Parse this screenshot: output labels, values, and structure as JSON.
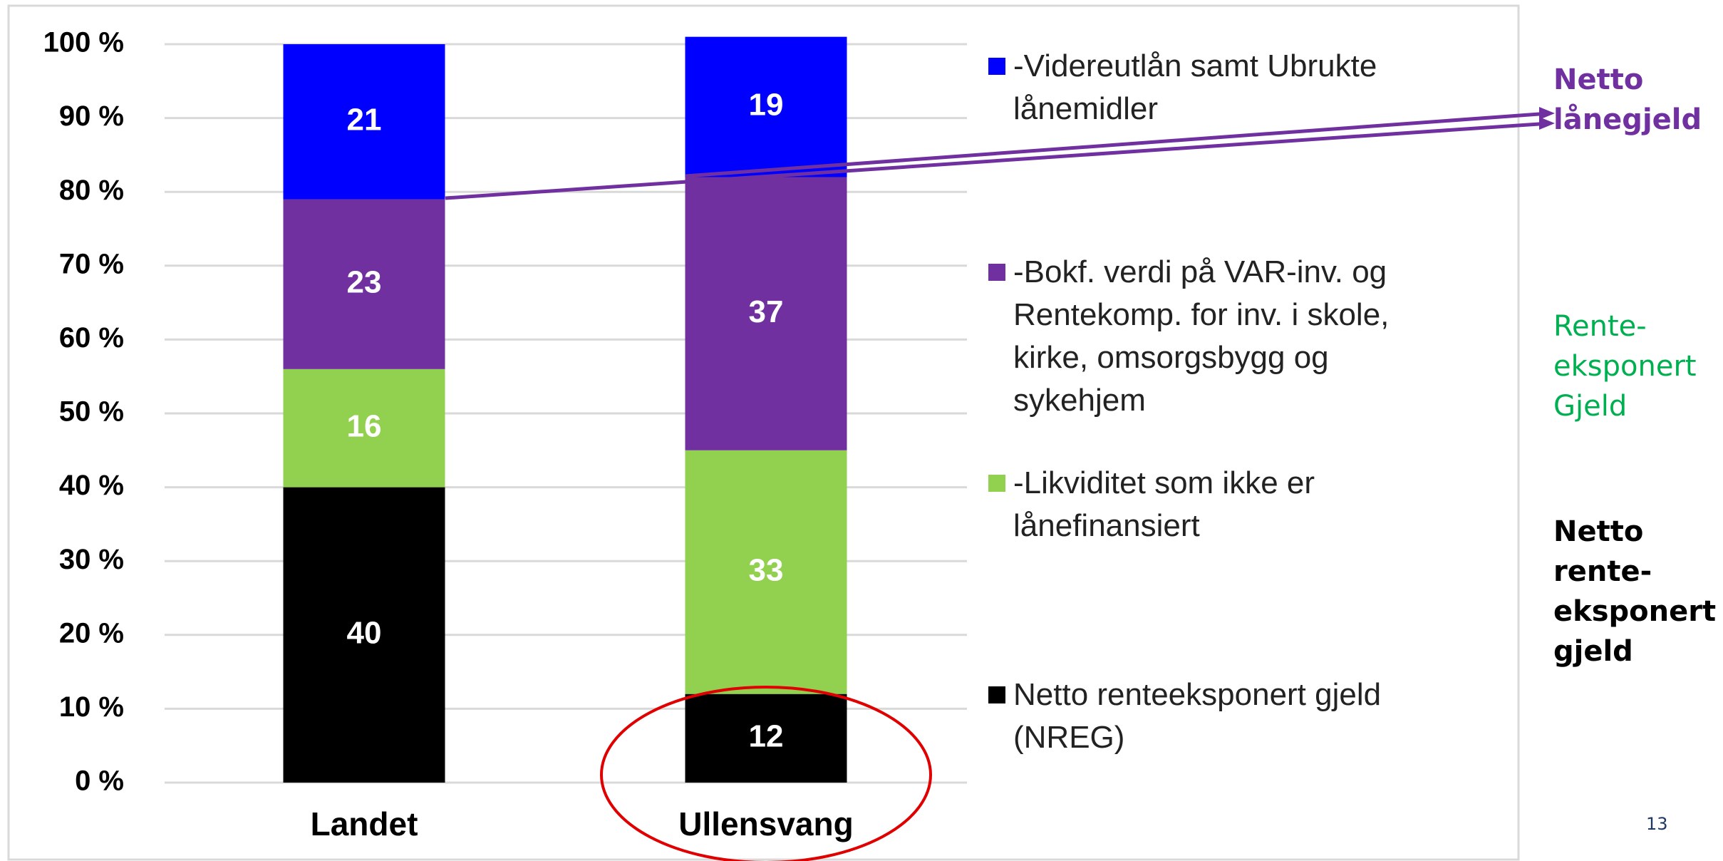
{
  "chart_data": {
    "type": "stacked_bar",
    "categories": [
      "Landet",
      "Ullensvang"
    ],
    "series": [
      {
        "name": "Netto renteeksponert gjeld (NREG)",
        "color": "#000000",
        "values": [
          40,
          12
        ]
      },
      {
        "name": "-Likviditet som ikke er lånefinansiert",
        "color": "#92d050",
        "values": [
          16,
          33
        ]
      },
      {
        "name": "-Bokf. verdi på VAR-inv. og Rentekomp. for inv. i skole, kirke, omsorgsbygg og sykehjem",
        "color": "#7030a0",
        "values": [
          23,
          37
        ]
      },
      {
        "name": "-Videreutlån samt Ubrukte lånemidler",
        "color": "#0000ff",
        "values": [
          21,
          19
        ]
      }
    ],
    "ylim": [
      0,
      100
    ],
    "yticks": [
      {
        "value": 0,
        "label": "0 %"
      },
      {
        "value": 10,
        "label": "10 %"
      },
      {
        "value": 20,
        "label": "20 %"
      },
      {
        "value": 30,
        "label": "30 %"
      },
      {
        "value": 40,
        "label": "40 %"
      },
      {
        "value": 50,
        "label": "50 %"
      },
      {
        "value": 60,
        "label": "60 %"
      },
      {
        "value": 70,
        "label": "70 %"
      },
      {
        "value": 80,
        "label": "80 %"
      },
      {
        "value": 90,
        "label": "90 %"
      },
      {
        "value": 100,
        "label": "100 %"
      }
    ],
    "grid": true,
    "annotations": [
      {
        "text": "Netto lånegjeld",
        "color": "#7030a0"
      },
      {
        "text": "Rente-eksponert Gjeld",
        "color": "#00b050"
      },
      {
        "text": "Netto rente-eksponert gjeld",
        "color": "#000000"
      }
    ],
    "page_number": "13"
  }
}
